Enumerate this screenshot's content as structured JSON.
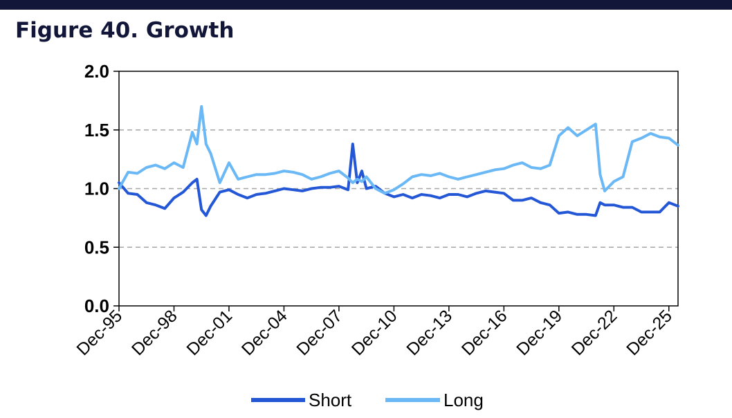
{
  "figure_title": "Figure 40. Growth",
  "colors": {
    "top_bar": "#12173a",
    "title": "#12173a",
    "short": "#2457d6",
    "long": "#6ab8f5",
    "grid": "#a6a6a6"
  },
  "chart_data": {
    "type": "line",
    "title": "",
    "xlabel": "",
    "ylabel": "",
    "ylim": [
      0,
      2
    ],
    "yticks": [
      "0.0",
      "0.5",
      "1.0",
      "1.5",
      "2.0"
    ],
    "xlim": [
      "Dec-95",
      "Jun-26"
    ],
    "xticks": [
      "Dec-95",
      "Dec-98",
      "Dec-01",
      "Dec-04",
      "Dec-07",
      "Dec-10",
      "Dec-13",
      "Dec-16",
      "Dec-19",
      "Dec-22",
      "Dec-25"
    ],
    "grid": "horizontal dashed",
    "legend_position": "bottom",
    "x": [
      "Dec-95",
      "Jun-96",
      "Dec-96",
      "Jun-97",
      "Dec-97",
      "Jun-98",
      "Dec-98",
      "Jun-99",
      "Dec-99",
      "Mar-00",
      "Jun-00",
      "Sep-00",
      "Dec-00",
      "Jun-01",
      "Dec-01",
      "Jun-02",
      "Dec-02",
      "Jun-03",
      "Dec-03",
      "Jun-04",
      "Dec-04",
      "Jun-05",
      "Dec-05",
      "Jun-06",
      "Dec-06",
      "Jun-07",
      "Dec-07",
      "Jun-08",
      "Sep-08",
      "Dec-08",
      "Mar-09",
      "Jun-09",
      "Dec-09",
      "Jun-10",
      "Dec-10",
      "Jun-11",
      "Dec-11",
      "Jun-12",
      "Dec-12",
      "Jun-13",
      "Dec-13",
      "Jun-14",
      "Dec-14",
      "Jun-15",
      "Dec-15",
      "Jun-16",
      "Dec-16",
      "Jun-17",
      "Dec-17",
      "Jun-18",
      "Dec-18",
      "Jun-19",
      "Dec-19",
      "Jun-20",
      "Dec-20",
      "Jun-21",
      "Dec-21",
      "Mar-22",
      "Jun-22",
      "Dec-22",
      "Jun-23",
      "Dec-23",
      "Jun-24",
      "Dec-24",
      "Jun-25",
      "Dec-25",
      "Jun-26"
    ],
    "series": [
      {
        "name": "Short",
        "values": [
          1.05,
          0.96,
          0.95,
          0.88,
          0.86,
          0.83,
          0.92,
          0.97,
          1.05,
          1.08,
          0.82,
          0.77,
          0.85,
          0.97,
          0.99,
          0.95,
          0.92,
          0.95,
          0.96,
          0.98,
          1.0,
          0.99,
          0.98,
          1.0,
          1.01,
          1.01,
          1.02,
          0.99,
          1.38,
          1.05,
          1.15,
          1.0,
          1.02,
          0.96,
          0.93,
          0.95,
          0.92,
          0.95,
          0.94,
          0.92,
          0.95,
          0.95,
          0.93,
          0.96,
          0.98,
          0.97,
          0.96,
          0.9,
          0.9,
          0.92,
          0.88,
          0.86,
          0.79,
          0.8,
          0.78,
          0.78,
          0.77,
          0.88,
          0.86,
          0.86,
          0.84,
          0.84,
          0.8,
          0.8,
          0.8,
          0.88,
          0.85
        ]
      },
      {
        "name": "Long",
        "values": [
          1.0,
          1.14,
          1.13,
          1.18,
          1.2,
          1.17,
          1.22,
          1.18,
          1.48,
          1.38,
          1.7,
          1.38,
          1.3,
          1.05,
          1.22,
          1.08,
          1.1,
          1.12,
          1.12,
          1.13,
          1.15,
          1.14,
          1.12,
          1.08,
          1.1,
          1.13,
          1.15,
          1.09,
          1.05,
          1.08,
          1.06,
          1.1,
          1.0,
          0.96,
          0.99,
          1.04,
          1.1,
          1.12,
          1.11,
          1.13,
          1.1,
          1.08,
          1.1,
          1.12,
          1.14,
          1.16,
          1.17,
          1.2,
          1.22,
          1.18,
          1.17,
          1.2,
          1.45,
          1.52,
          1.45,
          1.5,
          1.55,
          1.12,
          0.98,
          1.06,
          1.1,
          1.4,
          1.43,
          1.47,
          1.44,
          1.43,
          1.37
        ]
      }
    ]
  }
}
